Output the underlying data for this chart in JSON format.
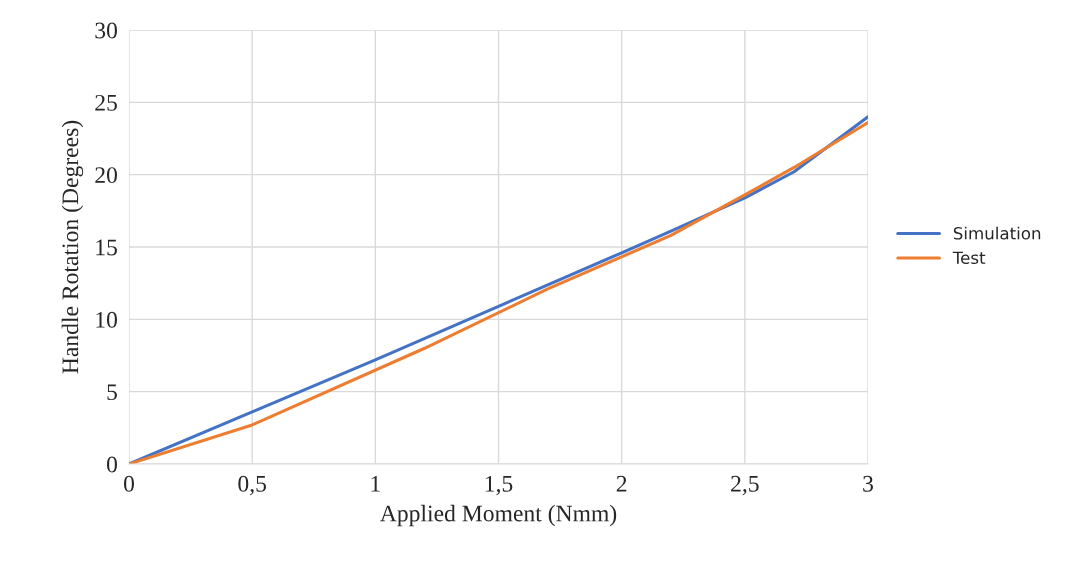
{
  "chart_data": {
    "type": "line",
    "xlabel": "Applied Moment (Nmm)",
    "ylabel": "Handle Rotation (Degrees)",
    "xlim": [
      0,
      3
    ],
    "xticks": [
      0,
      {
        "value": 0.5,
        "label": "0,5"
      },
      1,
      {
        "value": 1.5,
        "label": "1,5"
      },
      2,
      {
        "value": 2.5,
        "label": "2,5"
      },
      3
    ],
    "ylim": [
      0,
      30
    ],
    "yticks": [
      0,
      5,
      10,
      15,
      20,
      25,
      30
    ],
    "grid": true,
    "legend": "right",
    "marker": "none",
    "line_style": "solid",
    "series": [
      {
        "name": "Simulation",
        "color": "#4472c4",
        "x": [
          0,
          0.5,
          1,
          1.5,
          2,
          2.2,
          2.5,
          2.7,
          3
        ],
        "values": [
          0,
          3.6,
          7.2,
          10.9,
          14.6,
          16.1,
          18.4,
          20.2,
          24
        ]
      },
      {
        "name": "Test",
        "color": "#ed7d31",
        "x": [
          0,
          0.5,
          1.2,
          1.7,
          2.2,
          2.5,
          2.7,
          3
        ],
        "values": [
          0,
          2.7,
          8.0,
          12.1,
          15.8,
          18.6,
          20.5,
          23.6
        ]
      }
    ]
  }
}
